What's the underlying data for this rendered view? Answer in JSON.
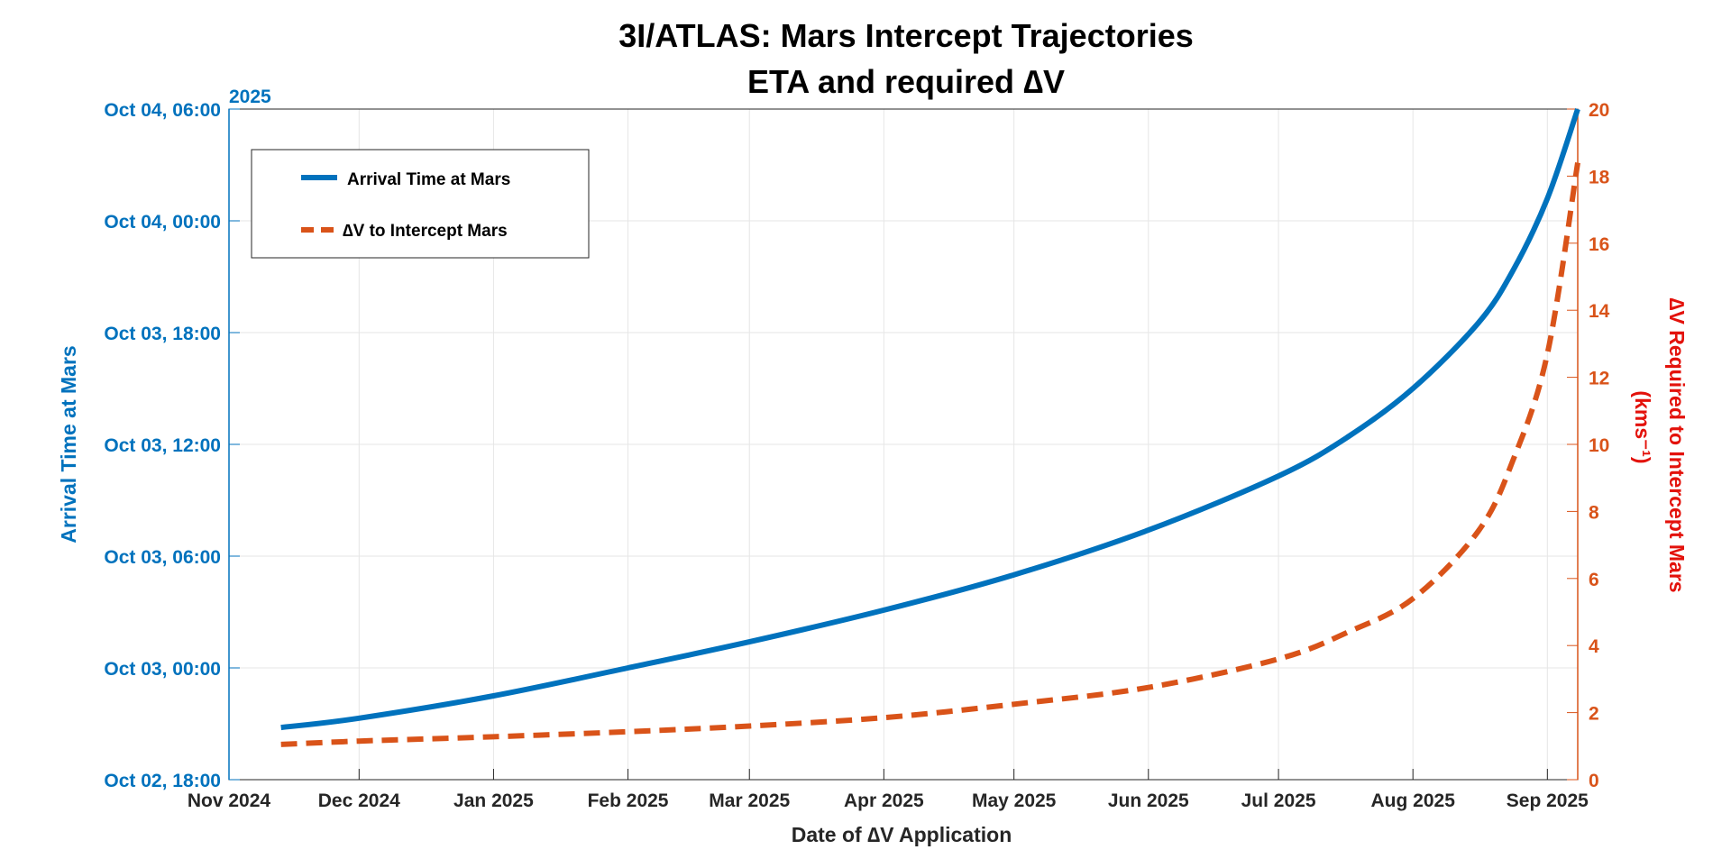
{
  "chart_data": {
    "type": "line",
    "title": "3I/ATLAS: Mars Intercept Trajectories",
    "subtitle": "ETA and required ∆V",
    "xlabel": "Date of ∆V Application",
    "ylabel_left": "Arrival Time at Mars",
    "ylabel_right": "∆V Required to Intercept Mars",
    "ylabel_right_units": "(kms⁻¹)",
    "x_year_label": "2025",
    "x_ticks": [
      "Nov 2024",
      "Dec 2024",
      "Jan 2025",
      "Feb 2025",
      "Mar 2025",
      "Apr 2025",
      "May 2025",
      "Jun 2025",
      "Jul 2025",
      "Aug 2025",
      "Sep 2025"
    ],
    "x_tick_days": [
      0,
      30,
      61,
      92,
      120,
      151,
      181,
      212,
      242,
      273,
      304
    ],
    "xlim_days": [
      0,
      311
    ],
    "y_left_ticks": [
      "Oct 02, 18:00",
      "Oct 03, 00:00",
      "Oct 03, 06:00",
      "Oct 03, 12:00",
      "Oct 03, 18:00",
      "Oct 04, 00:00",
      "Oct 04, 06:00"
    ],
    "y_left_unit": "hours after Oct 02, 18:00",
    "y_left_range": [
      0,
      36
    ],
    "y_right_ticks": [
      "0",
      "2",
      "4",
      "6",
      "8",
      "10",
      "12",
      "14",
      "16",
      "18",
      "20"
    ],
    "y_right_range": [
      0,
      20
    ],
    "grid": true,
    "legend_position": "top-left",
    "x_unit": "days after Nov 1 2024",
    "series": [
      {
        "name": "Arrival Time at Mars",
        "axis": "left",
        "color": "#0072BD",
        "style": "solid",
        "x": [
          12,
          30,
          61,
          92,
          120,
          151,
          181,
          212,
          242,
          258,
          273,
          288,
          296,
          304,
          311
        ],
        "y": [
          2.8,
          3.3,
          4.5,
          6.0,
          7.4,
          9.1,
          11.0,
          13.4,
          16.3,
          18.4,
          21.0,
          24.5,
          27.3,
          31.2,
          36.0
        ]
      },
      {
        "name": "∆V to Intercept Mars",
        "axis": "right",
        "color": "#D95319",
        "style": "dashed",
        "x": [
          12,
          30,
          61,
          92,
          120,
          151,
          181,
          212,
          242,
          258,
          273,
          288,
          296,
          304,
          311
        ],
        "y": [
          1.05,
          1.15,
          1.28,
          1.43,
          1.6,
          1.85,
          2.25,
          2.75,
          3.6,
          4.4,
          5.4,
          7.4,
          9.5,
          12.7,
          18.4
        ]
      }
    ],
    "legend": [
      {
        "label": "Arrival Time at Mars",
        "color": "#0072BD",
        "style": "solid"
      },
      {
        "label": "∆V to Intercept Mars",
        "color": "#D95319",
        "style": "dashed"
      }
    ],
    "colors": {
      "left_axis": "#0072BD",
      "right_axis": "#D95319",
      "right_label": "#E3120B",
      "grid": "#E6E6E6",
      "frame": "#262626"
    }
  }
}
